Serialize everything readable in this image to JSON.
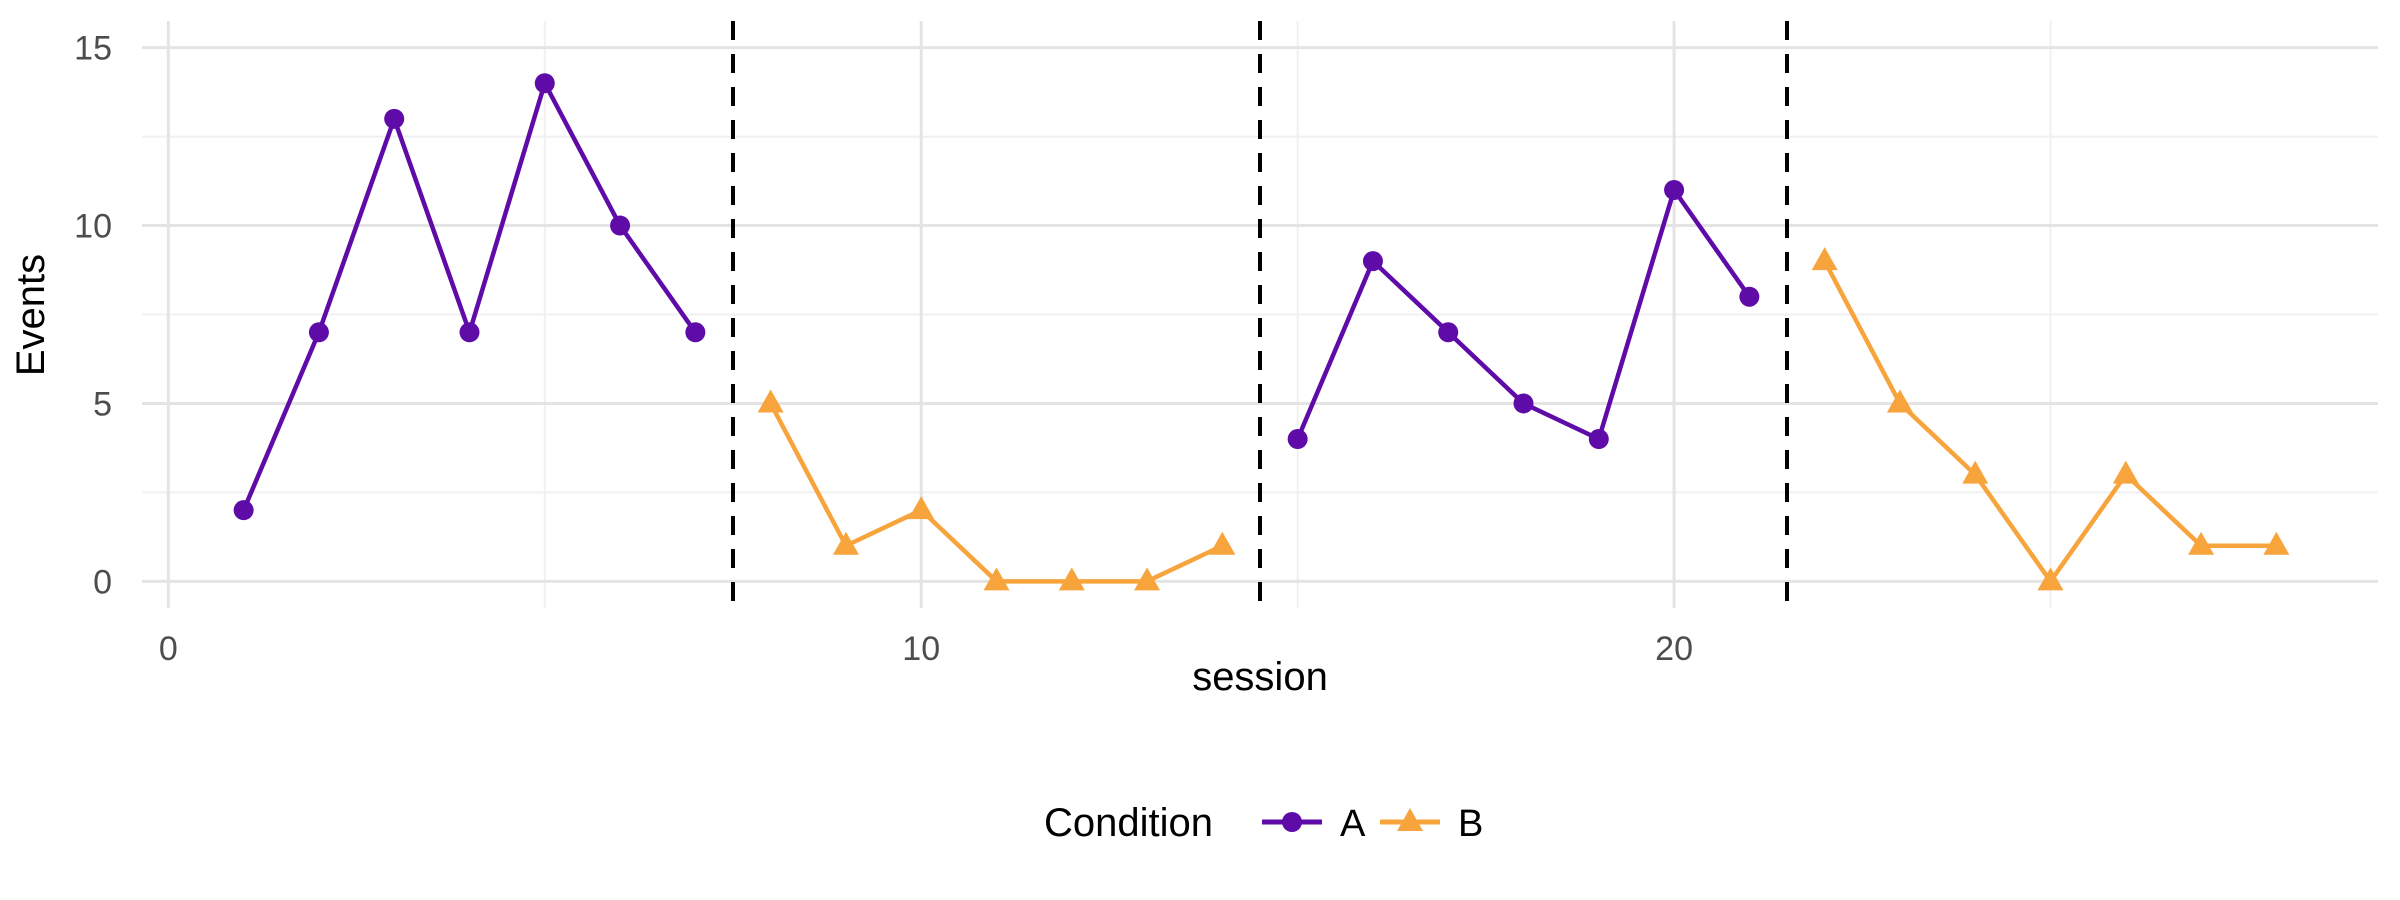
{
  "chart_data": {
    "type": "line",
    "title": "",
    "xlabel": "session",
    "ylabel": "Events",
    "legend_title": "Condition",
    "legend_position": "bottom",
    "grid": true,
    "x_ticks": [
      0,
      10,
      20
    ],
    "x_minor_ticks": [
      5,
      15,
      25
    ],
    "y_ticks": [
      0,
      5,
      10,
      15
    ],
    "y_minor_ticks": [
      2.5,
      7.5,
      12.5
    ],
    "xlim": [
      -0.35,
      29.35
    ],
    "ylim": [
      -0.75,
      15.75
    ],
    "background_color": "#FFFFFF",
    "grid_major_color": "#E4E4E4",
    "grid_minor_color": "#F0F0F0",
    "tick_label_color": "#4D4D4D",
    "phase_change_lines": [
      7.5,
      14.5,
      21.5
    ],
    "phase_line_style": "dashed",
    "phase_line_color": "#000000",
    "series": [
      {
        "name": "A",
        "color": "#5E0BA8",
        "marker": "circle",
        "segments": [
          {
            "x": [
              1,
              2,
              3,
              4,
              5,
              6,
              7
            ],
            "y": [
              2,
              7,
              13,
              7,
              14,
              10,
              7
            ]
          },
          {
            "x": [
              15,
              16,
              17,
              18,
              19,
              20,
              21
            ],
            "y": [
              4,
              9,
              7,
              5,
              4,
              11,
              8
            ]
          }
        ]
      },
      {
        "name": "B",
        "color": "#F8A43C",
        "marker": "triangle",
        "segments": [
          {
            "x": [
              8,
              9,
              10,
              11,
              12,
              13,
              14
            ],
            "y": [
              5,
              1,
              2,
              0,
              0,
              0,
              1
            ]
          },
          {
            "x": [
              22,
              23,
              24,
              25,
              26,
              27,
              28
            ],
            "y": [
              9,
              5,
              3,
              0,
              3,
              1,
              1
            ]
          }
        ]
      }
    ]
  }
}
